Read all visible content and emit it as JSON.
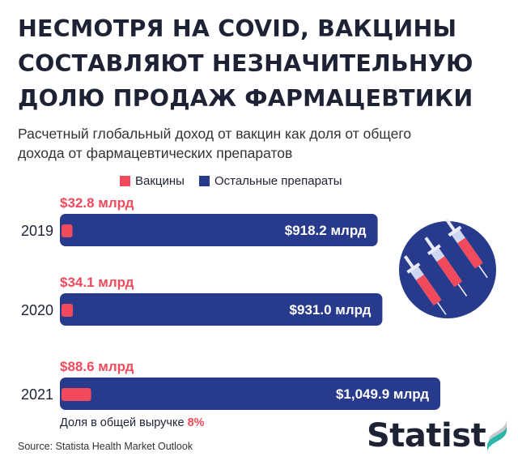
{
  "title_lines": [
    "НЕСМОТРЯ НА COVID, ВАКЦИНЫ",
    "СОСТАВЛЯЮТ НЕЗНАЧИТЕЛЬНУЮ",
    "ДОЛЮ ПРОДАЖ ФАРМАЦЕВТИКИ"
  ],
  "subtitle_lines": [
    "Расчетный глобальный доход от вакцин как доля от общего",
    "дохода от фармацевтических препаратов"
  ],
  "legend": [
    {
      "label": "Вакцины",
      "color": "#f14a5d"
    },
    {
      "label": "Остальные препараты",
      "color": "#283a8c"
    }
  ],
  "colors": {
    "vaccines": "#f14a5d",
    "other": "#283a8c",
    "text": "#1e2235",
    "accent_logo": "#2ab7a9"
  },
  "chart_data": {
    "type": "bar",
    "orientation": "horizontal",
    "stacked": true,
    "categories": [
      "2019",
      "2020",
      "2021"
    ],
    "series": [
      {
        "name": "Вакцины",
        "values": [
          32.8,
          34.1,
          88.6
        ],
        "labels": [
          "$32.8 млрд",
          "$34.1 млрд",
          "$88.6 млрд"
        ]
      },
      {
        "name": "Остальные препараты",
        "values": [
          918.2,
          931.0,
          1049.9
        ],
        "labels": [
          "$918.2 млрд",
          "$931.0 млрд",
          "$1,049.9 млрд"
        ]
      }
    ],
    "unit": "млрд $",
    "grid": false
  },
  "footnote": {
    "text": "Доля в общей выручке ",
    "value": "8%"
  },
  "source": "Source: Statista Health Market Outlook",
  "logo": {
    "text": "Statist",
    "icon": "statista-wave-icon"
  },
  "illustration": "syringes-icon"
}
